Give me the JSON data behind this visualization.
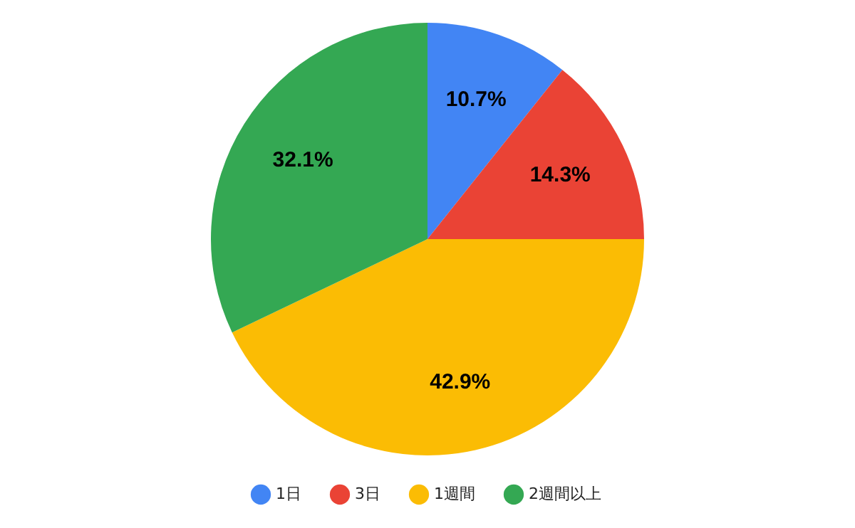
{
  "chart_data": {
    "type": "pie",
    "categories": [
      "1日",
      "3日",
      "1週間",
      "2週間以上"
    ],
    "values": [
      10.7,
      14.3,
      42.9,
      32.1
    ],
    "colors": [
      "#4285f4",
      "#ea4335",
      "#fbbc04",
      "#34a853"
    ],
    "value_labels": [
      "10.7%",
      "14.3%",
      "42.9%",
      "32.1%"
    ],
    "legend": "bottom"
  }
}
